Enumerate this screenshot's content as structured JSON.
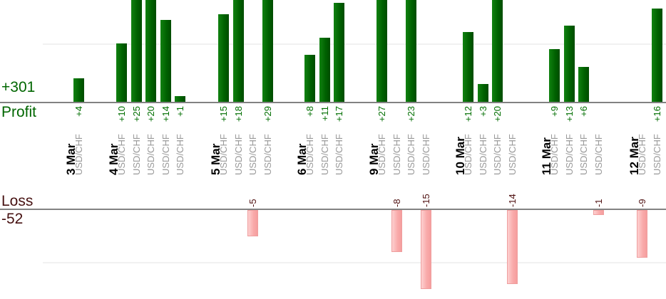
{
  "chart_data": {
    "type": "bar",
    "orientation": "vertical",
    "description_visible_text_only": "Daily per-trade profit (top, green) and loss (bottom, pink) bars grouped by date",
    "panels": {
      "profit": {
        "label": "Profit",
        "total": "+301",
        "total_value": 301,
        "gridline_value": 10,
        "visible_axis_range": [
          0,
          17.4
        ],
        "bars_clipped_above": 17.4
      },
      "loss": {
        "label": "Loss",
        "total": "-52",
        "total_value": -52,
        "gridline_value": -10,
        "visible_axis_range": [
          0,
          -16.9
        ]
      }
    },
    "days": [
      {
        "date": "3 Mar",
        "trades": [
          {
            "symbol": "USD/CHF",
            "pnl": 4
          }
        ]
      },
      {
        "date": "4 Mar",
        "trades": [
          {
            "symbol": "USD/CHF",
            "pnl": 10
          },
          {
            "symbol": "USD/CHF",
            "pnl": 25
          },
          {
            "symbol": "USD/CHF",
            "pnl": 20
          },
          {
            "symbol": "USD/CHF",
            "pnl": 14
          },
          {
            "symbol": "USD/CHF",
            "pnl": 1
          }
        ]
      },
      {
        "date": "5 Mar",
        "trades": [
          {
            "symbol": "USD/CHF",
            "pnl": 15
          },
          {
            "symbol": "USD/CHF",
            "pnl": 18
          },
          {
            "symbol": "USD/CHF",
            "pnl": -5
          },
          {
            "symbol": "USD/CHF",
            "pnl": 29
          }
        ]
      },
      {
        "date": "6 Mar",
        "trades": [
          {
            "symbol": "USD/CHF",
            "pnl": 8
          },
          {
            "symbol": "USD/CHF",
            "pnl": 11
          },
          {
            "symbol": "USD/CHF",
            "pnl": 17
          }
        ]
      },
      {
        "date": "9 Mar",
        "trades": [
          {
            "symbol": "USD/CHF",
            "pnl": 27
          },
          {
            "symbol": "USD/CHF",
            "pnl": -8
          },
          {
            "symbol": "USD/CHF",
            "pnl": 23
          },
          {
            "symbol": "USD/CHF",
            "pnl": -15
          }
        ]
      },
      {
        "date": "10 Mar",
        "trades": [
          {
            "symbol": "USD/CHF",
            "pnl": 12
          },
          {
            "symbol": "USD/CHF",
            "pnl": 3
          },
          {
            "symbol": "USD/CHF",
            "pnl": 20
          },
          {
            "symbol": "USD/CHF",
            "pnl": -14
          }
        ]
      },
      {
        "date": "11 Mar",
        "trades": [
          {
            "symbol": "USD/CHF",
            "pnl": 9
          },
          {
            "symbol": "USD/CHF",
            "pnl": 13
          },
          {
            "symbol": "USD/CHF",
            "pnl": 6
          },
          {
            "symbol": "USD/CHF",
            "pnl": -1
          }
        ]
      },
      {
        "date": "12 Mar",
        "trades": [
          {
            "symbol": "USD/CHF",
            "pnl": -9
          },
          {
            "symbol": "USD/CHF",
            "pnl": 16
          }
        ]
      }
    ],
    "legend_position": "left margin (series name + total stacked at axis)",
    "grid": "one faint horizontal gridline per panel at ±10"
  },
  "colors": {
    "profit_bar": "#006201",
    "profit_text": "#006600",
    "loss_bar_fill": "#f9a9a9",
    "loss_bar_border": "#ef9e9e",
    "loss_text": "#461111",
    "date_text": "#000000",
    "symbol_text": "#999999",
    "axis_line": "#828282",
    "gridline": "#f1f1f1",
    "background": "#ffffff"
  }
}
